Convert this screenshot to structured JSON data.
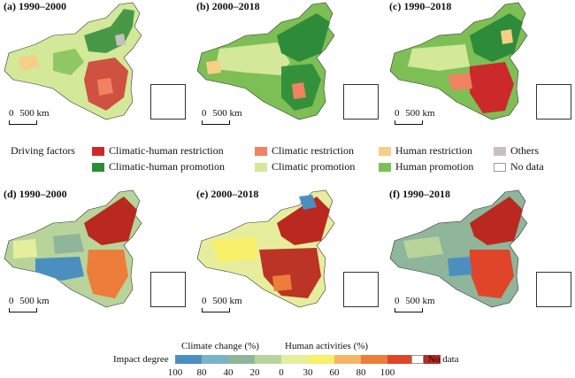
{
  "panels": [
    {
      "label": "(a) 1990–2000"
    },
    {
      "label": "(b) 2000–2018"
    },
    {
      "label": "(c) 1990–2018"
    },
    {
      "label": "(d) 1990–2000"
    },
    {
      "label": "(e) 2000–2018"
    },
    {
      "label": "(f) 1990–2018"
    }
  ],
  "scale_label": "500 km",
  "scale_prefix": "0",
  "legend1": {
    "title": "Driving factors",
    "items": [
      {
        "label": "Climatic-human restriction",
        "color": "#cc2a2a"
      },
      {
        "label": "Climatic restriction",
        "color": "#f08262"
      },
      {
        "label": "Human restriction",
        "color": "#f5cf84"
      },
      {
        "label": "Others",
        "color": "#c7bfc0"
      },
      {
        "label": "Climatic-human promotion",
        "color": "#2e8b3a"
      },
      {
        "label": "Climatic promotion",
        "color": "#d4e89a"
      },
      {
        "label": "Human promotion",
        "color": "#7dbf55"
      },
      {
        "label": "No data",
        "color": "#ffffff"
      }
    ]
  },
  "legend2": {
    "title": "Impact degree",
    "climate_label": "Climate change (%)",
    "human_label": "Human activities (%)",
    "no_data": "No data",
    "ticks": [
      "100",
      "80",
      "40",
      "20",
      "0",
      "30",
      "60",
      "80",
      "100"
    ],
    "colors": [
      "#4a8fbf",
      "#7ab3c8",
      "#8fb59a",
      "#b8d49a",
      "#e6ee9e",
      "#f8ef6a",
      "#f5b566",
      "#ed7d3a",
      "#e0452a",
      "#b9291f"
    ]
  }
}
